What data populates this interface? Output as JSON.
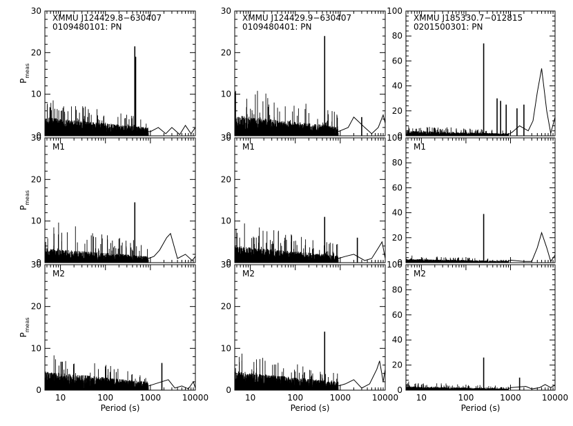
{
  "axes": {
    "xlabel": "Period (s)",
    "ylabel_main": "P",
    "ylabel_sub": "meas",
    "x_ticks": [
      {
        "value": 10,
        "label": "10"
      },
      {
        "value": 100,
        "label": "100"
      },
      {
        "value": 1000,
        "label": "1000"
      },
      {
        "value": 10000,
        "label": "10000"
      }
    ],
    "y_ticks_left": [
      {
        "value": 0,
        "label": "0"
      },
      {
        "value": 10,
        "label": "10"
      },
      {
        "value": 20,
        "label": "20"
      },
      {
        "value": 30,
        "label": "30"
      }
    ],
    "y_ticks_right": [
      {
        "value": 0,
        "label": "0"
      },
      {
        "value": 20,
        "label": "20"
      },
      {
        "value": 40,
        "label": "40"
      },
      {
        "value": 60,
        "label": "60"
      },
      {
        "value": 80,
        "label": "80"
      },
      {
        "value": 100,
        "label": "100"
      }
    ]
  },
  "chart_data": [
    {
      "type": "line",
      "col": 0,
      "row": 0,
      "title_line1": "XMMU J124429.8−630407",
      "title_line2": "0109480101: PN",
      "label": "",
      "xlim": [
        4.5,
        10000
      ],
      "ylim": [
        0,
        30
      ],
      "xscale": "log",
      "noise_level": 4.5,
      "noise_max": 9,
      "peaks": [
        {
          "x": 450,
          "y": 21.5
        },
        {
          "x": 470,
          "y": 19
        }
      ],
      "tail": [
        {
          "x": 1000,
          "y": 1
        },
        {
          "x": 1500,
          "y": 2
        },
        {
          "x": 2200,
          "y": 0.5
        },
        {
          "x": 3000,
          "y": 2
        },
        {
          "x": 4500,
          "y": 0.3
        },
        {
          "x": 6000,
          "y": 2.5
        },
        {
          "x": 8000,
          "y": 0.5
        },
        {
          "x": 10000,
          "y": 2
        }
      ]
    },
    {
      "type": "line",
      "col": 0,
      "row": 1,
      "title_line1": "",
      "title_line2": "",
      "label": "M1",
      "xlim": [
        4.5,
        10000
      ],
      "ylim": [
        0,
        30
      ],
      "xscale": "log",
      "noise_level": 3.5,
      "noise_max": 10.5,
      "peaks": [
        {
          "x": 450,
          "y": 14.5
        }
      ],
      "tail": [
        {
          "x": 1200,
          "y": 1.5
        },
        {
          "x": 1600,
          "y": 3
        },
        {
          "x": 2300,
          "y": 6
        },
        {
          "x": 2800,
          "y": 7
        },
        {
          "x": 4000,
          "y": 1
        },
        {
          "x": 6000,
          "y": 2
        },
        {
          "x": 8500,
          "y": 0.5
        },
        {
          "x": 10000,
          "y": 1.5
        }
      ]
    },
    {
      "type": "line",
      "col": 0,
      "row": 2,
      "title_line1": "",
      "title_line2": "",
      "label": "M2",
      "xlim": [
        4.5,
        10000
      ],
      "ylim": [
        0,
        30
      ],
      "xscale": "log",
      "noise_level": 4.5,
      "noise_max": 9,
      "peaks": [
        {
          "x": 1800,
          "y": 6.5
        }
      ],
      "tail": [
        {
          "x": 2500,
          "y": 2.5
        },
        {
          "x": 3500,
          "y": 0.5
        },
        {
          "x": 5000,
          "y": 1
        },
        {
          "x": 7000,
          "y": 0.3
        },
        {
          "x": 9000,
          "y": 2
        },
        {
          "x": 10000,
          "y": 0.5
        }
      ]
    },
    {
      "type": "line",
      "col": 1,
      "row": 0,
      "title_line1": "XMMU J124429.9−630407",
      "title_line2": "0109480401: PN",
      "label": "",
      "xlim": [
        4.5,
        10000
      ],
      "ylim": [
        0,
        30
      ],
      "xscale": "log",
      "noise_level": 5,
      "noise_max": 12.5,
      "peaks": [
        {
          "x": 450,
          "y": 24
        },
        {
          "x": 3000,
          "y": 4.5
        }
      ],
      "tail": [
        {
          "x": 1500,
          "y": 2
        },
        {
          "x": 2000,
          "y": 4.5
        },
        {
          "x": 3500,
          "y": 2
        },
        {
          "x": 5000,
          "y": 0.5
        },
        {
          "x": 7000,
          "y": 2
        },
        {
          "x": 9000,
          "y": 5
        },
        {
          "x": 10000,
          "y": 3
        }
      ]
    },
    {
      "type": "line",
      "col": 1,
      "row": 1,
      "title_line1": "",
      "title_line2": "",
      "label": "M1",
      "xlim": [
        4.5,
        10000
      ],
      "ylim": [
        0,
        30
      ],
      "xscale": "log",
      "noise_level": 4,
      "noise_max": 10,
      "peaks": [
        {
          "x": 450,
          "y": 11
        },
        {
          "x": 2400,
          "y": 6
        }
      ],
      "tail": [
        {
          "x": 1300,
          "y": 1.5
        },
        {
          "x": 2000,
          "y": 2
        },
        {
          "x": 3500,
          "y": 0.5
        },
        {
          "x": 5000,
          "y": 1
        },
        {
          "x": 7000,
          "y": 3.5
        },
        {
          "x": 8500,
          "y": 5
        },
        {
          "x": 10000,
          "y": 1
        }
      ]
    },
    {
      "type": "line",
      "col": 1,
      "row": 2,
      "title_line1": "",
      "title_line2": "",
      "label": "M2",
      "xlim": [
        4.5,
        10000
      ],
      "ylim": [
        0,
        30
      ],
      "xscale": "log",
      "noise_level": 4.5,
      "noise_max": 9.5,
      "peaks": [
        {
          "x": 450,
          "y": 14
        }
      ],
      "tail": [
        {
          "x": 1300,
          "y": 1.5
        },
        {
          "x": 2000,
          "y": 2.5
        },
        {
          "x": 3000,
          "y": 0.5
        },
        {
          "x": 4500,
          "y": 1.5
        },
        {
          "x": 6500,
          "y": 5
        },
        {
          "x": 7500,
          "y": 7
        },
        {
          "x": 9000,
          "y": 2
        },
        {
          "x": 10000,
          "y": 5
        }
      ]
    },
    {
      "type": "line",
      "col": 2,
      "row": 0,
      "title_line1": "XMMU J185330.7−012815",
      "title_line2": "0201500301: PN",
      "label": "",
      "xlim": [
        4.5,
        10000
      ],
      "ylim": [
        0,
        100
      ],
      "xscale": "log",
      "noise_level": 4,
      "noise_max": 9,
      "peaks": [
        {
          "x": 250,
          "y": 74
        },
        {
          "x": 500,
          "y": 30
        },
        {
          "x": 600,
          "y": 28
        },
        {
          "x": 800,
          "y": 25
        },
        {
          "x": 1400,
          "y": 22
        },
        {
          "x": 2000,
          "y": 25
        }
      ],
      "tail": [
        {
          "x": 1100,
          "y": 3
        },
        {
          "x": 1600,
          "y": 8
        },
        {
          "x": 2500,
          "y": 4
        },
        {
          "x": 3200,
          "y": 12
        },
        {
          "x": 4000,
          "y": 35
        },
        {
          "x": 5000,
          "y": 54
        },
        {
          "x": 6500,
          "y": 20
        },
        {
          "x": 8000,
          "y": 2
        },
        {
          "x": 10000,
          "y": 15
        }
      ]
    },
    {
      "type": "line",
      "col": 2,
      "row": 1,
      "title_line1": "",
      "title_line2": "",
      "label": "M1",
      "xlim": [
        4.5,
        10000
      ],
      "ylim": [
        0,
        100
      ],
      "xscale": "log",
      "noise_level": 3,
      "noise_max": 6,
      "peaks": [
        {
          "x": 250,
          "y": 39
        }
      ],
      "tail": [
        {
          "x": 1000,
          "y": 2
        },
        {
          "x": 2000,
          "y": 1
        },
        {
          "x": 3000,
          "y": 1
        },
        {
          "x": 4000,
          "y": 12
        },
        {
          "x": 5000,
          "y": 24
        },
        {
          "x": 6500,
          "y": 12
        },
        {
          "x": 8000,
          "y": 1
        },
        {
          "x": 10000,
          "y": 6
        }
      ]
    },
    {
      "type": "line",
      "col": 2,
      "row": 2,
      "title_line1": "",
      "title_line2": "",
      "label": "M2",
      "xlim": [
        4.5,
        10000
      ],
      "ylim": [
        0,
        100
      ],
      "xscale": "log",
      "noise_level": 3,
      "noise_max": 7,
      "peaks": [
        {
          "x": 250,
          "y": 26
        },
        {
          "x": 1600,
          "y": 10
        }
      ],
      "tail": [
        {
          "x": 1000,
          "y": 2
        },
        {
          "x": 2200,
          "y": 3
        },
        {
          "x": 3000,
          "y": 1
        },
        {
          "x": 4500,
          "y": 2
        },
        {
          "x": 6000,
          "y": 4.5
        },
        {
          "x": 8000,
          "y": 2
        },
        {
          "x": 10000,
          "y": 4
        }
      ]
    }
  ]
}
